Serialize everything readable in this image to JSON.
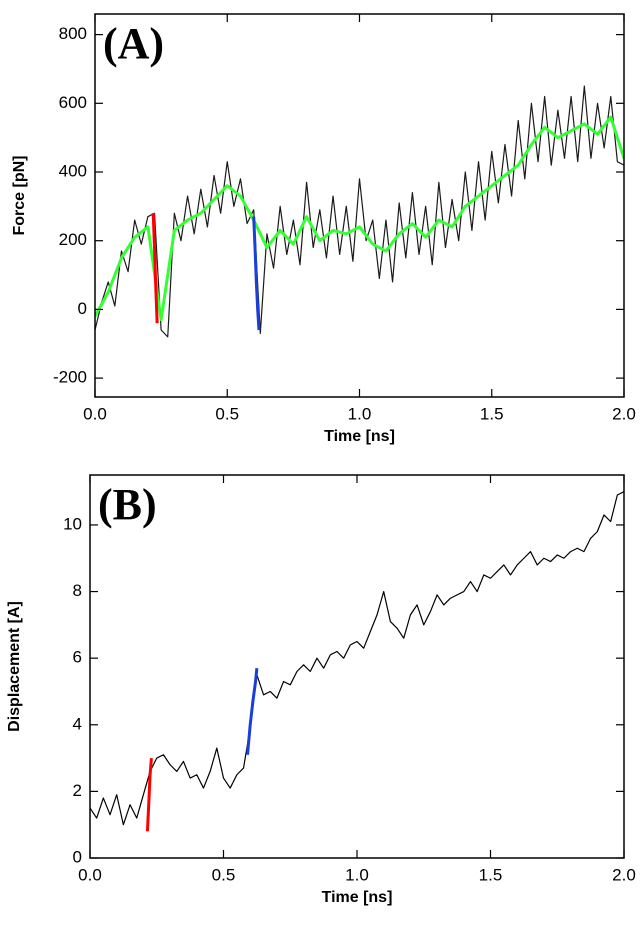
{
  "chart_data": [
    {
      "type": "line",
      "annotation": "(A)",
      "x_label": "Time [ns]",
      "y_label": "Force [pN]",
      "xlim": [
        0,
        2
      ],
      "ylim": [
        -255,
        860
      ],
      "xticks": [
        {
          "value": 0,
          "label": "0.0"
        },
        {
          "value": 0.5,
          "label": "0.5"
        },
        {
          "value": 1,
          "label": "1.0"
        },
        {
          "value": 1.5,
          "label": "1.5"
        },
        {
          "value": 2,
          "label": "2.0"
        }
      ],
      "yticks": [
        -200,
        0,
        200,
        400,
        600,
        800
      ],
      "series": [
        {
          "color": "#1a1a1a",
          "x": [
            0,
            0.025,
            0.05,
            0.075,
            0.1,
            0.125,
            0.15,
            0.175,
            0.2,
            0.225,
            0.25,
            0.275,
            0.3,
            0.325,
            0.35,
            0.375,
            0.4,
            0.425,
            0.45,
            0.475,
            0.5,
            0.525,
            0.55,
            0.575,
            0.6,
            0.625,
            0.65,
            0.675,
            0.7,
            0.725,
            0.75,
            0.775,
            0.8,
            0.825,
            0.85,
            0.875,
            0.9,
            0.925,
            0.95,
            0.975,
            1,
            1.025,
            1.05,
            1.075,
            1.1,
            1.125,
            1.15,
            1.175,
            1.2,
            1.225,
            1.25,
            1.275,
            1.3,
            1.325,
            1.35,
            1.375,
            1.4,
            1.425,
            1.45,
            1.475,
            1.5,
            1.525,
            1.55,
            1.575,
            1.6,
            1.625,
            1.65,
            1.675,
            1.7,
            1.725,
            1.75,
            1.775,
            1.8,
            1.825,
            1.85,
            1.875,
            1.9,
            1.925,
            1.95,
            1.975,
            2
          ],
          "values": [
            -60,
            20,
            80,
            10,
            170,
            110,
            260,
            190,
            270,
            280,
            -60,
            -80,
            280,
            200,
            330,
            220,
            350,
            240,
            390,
            280,
            430,
            300,
            380,
            250,
            290,
            -70,
            220,
            120,
            300,
            160,
            260,
            130,
            370,
            180,
            290,
            150,
            330,
            160,
            300,
            140,
            380,
            200,
            260,
            90,
            260,
            80,
            310,
            150,
            340,
            160,
            300,
            130,
            370,
            180,
            320,
            200,
            400,
            230,
            430,
            260,
            460,
            310,
            480,
            330,
            550,
            380,
            600,
            430,
            620,
            420,
            580,
            440,
            620,
            430,
            650,
            440,
            600,
            470,
            620,
            430,
            420
          ]
        },
        {
          "color": "#33ff33",
          "x": [
            0,
            0.05,
            0.1,
            0.15,
            0.2,
            0.25,
            0.3,
            0.35,
            0.4,
            0.45,
            0.5,
            0.55,
            0.6,
            0.65,
            0.7,
            0.75,
            0.8,
            0.85,
            0.9,
            0.95,
            1,
            1.05,
            1.1,
            1.15,
            1.2,
            1.25,
            1.3,
            1.35,
            1.4,
            1.45,
            1.5,
            1.55,
            1.6,
            1.65,
            1.7,
            1.75,
            1.8,
            1.85,
            1.9,
            1.95,
            2
          ],
          "values": [
            -20,
            50,
            150,
            210,
            240,
            -30,
            230,
            260,
            280,
            320,
            360,
            330,
            260,
            180,
            230,
            190,
            270,
            200,
            230,
            220,
            240,
            190,
            170,
            220,
            250,
            210,
            260,
            240,
            300,
            330,
            360,
            390,
            420,
            480,
            530,
            500,
            520,
            540,
            510,
            560,
            440
          ]
        },
        {
          "color": "#ff0000",
          "x": [
            0.22,
            0.225,
            0.23,
            0.235
          ],
          "values": [
            280,
            180,
            60,
            -40
          ]
        },
        {
          "color": "#1a3fd6",
          "x": [
            0.6,
            0.605,
            0.61,
            0.615,
            0.62
          ],
          "values": [
            270,
            180,
            80,
            0,
            -60
          ]
        }
      ]
    },
    {
      "type": "line",
      "annotation": "(B)",
      "x_label": "Time [ns]",
      "y_label": "Displacement [A]",
      "xlim": [
        0,
        2
      ],
      "ylim": [
        0,
        11.5
      ],
      "xticks": [
        {
          "value": 0,
          "label": "0.0"
        },
        {
          "value": 0.5,
          "label": "0.5"
        },
        {
          "value": 1,
          "label": "1.0"
        },
        {
          "value": 1.5,
          "label": "1.5"
        },
        {
          "value": 2,
          "label": "2.0"
        }
      ],
      "yticks": [
        0,
        2,
        4,
        6,
        8,
        10
      ],
      "series": [
        {
          "color": "#000000",
          "x": [
            0,
            0.025,
            0.05,
            0.075,
            0.1,
            0.125,
            0.15,
            0.175,
            0.2,
            0.225,
            0.25,
            0.275,
            0.3,
            0.325,
            0.35,
            0.375,
            0.4,
            0.425,
            0.45,
            0.475,
            0.5,
            0.525,
            0.55,
            0.575,
            0.6,
            0.625,
            0.65,
            0.675,
            0.7,
            0.725,
            0.75,
            0.775,
            0.8,
            0.825,
            0.85,
            0.875,
            0.9,
            0.925,
            0.95,
            0.975,
            1,
            1.025,
            1.05,
            1.075,
            1.1,
            1.125,
            1.15,
            1.175,
            1.2,
            1.225,
            1.25,
            1.275,
            1.3,
            1.325,
            1.35,
            1.375,
            1.4,
            1.425,
            1.45,
            1.475,
            1.5,
            1.525,
            1.55,
            1.575,
            1.6,
            1.625,
            1.65,
            1.675,
            1.7,
            1.725,
            1.75,
            1.775,
            1.8,
            1.825,
            1.85,
            1.875,
            1.9,
            1.925,
            1.95,
            1.975,
            2
          ],
          "values": [
            1.5,
            1.2,
            1.8,
            1.3,
            1.9,
            1.0,
            1.6,
            1.2,
            1.9,
            2.6,
            3.0,
            3.1,
            2.8,
            2.6,
            2.9,
            2.4,
            2.5,
            2.1,
            2.6,
            3.3,
            2.4,
            2.1,
            2.5,
            2.7,
            3.9,
            5.5,
            4.9,
            5.0,
            4.8,
            5.3,
            5.2,
            5.6,
            5.8,
            5.6,
            6.0,
            5.7,
            6.1,
            6.2,
            6.0,
            6.4,
            6.5,
            6.3,
            6.8,
            7.3,
            8.0,
            7.1,
            6.9,
            6.6,
            7.3,
            7.6,
            7.0,
            7.4,
            7.9,
            7.6,
            7.8,
            7.9,
            8.0,
            8.3,
            8.0,
            8.5,
            8.4,
            8.6,
            8.8,
            8.5,
            8.8,
            9.0,
            9.2,
            8.8,
            9.0,
            8.9,
            9.1,
            9.0,
            9.2,
            9.3,
            9.2,
            9.6,
            9.8,
            10.3,
            10.1,
            10.9,
            11.0
          ]
        },
        {
          "color": "#ff0000",
          "x": [
            0.215,
            0.22,
            0.225,
            0.23
          ],
          "values": [
            0.8,
            1.6,
            2.5,
            3.0
          ]
        },
        {
          "color": "#1a3fd6",
          "x": [
            0.59,
            0.6,
            0.61,
            0.62,
            0.625
          ],
          "values": [
            3.1,
            4.0,
            4.7,
            5.3,
            5.7
          ]
        }
      ]
    }
  ]
}
